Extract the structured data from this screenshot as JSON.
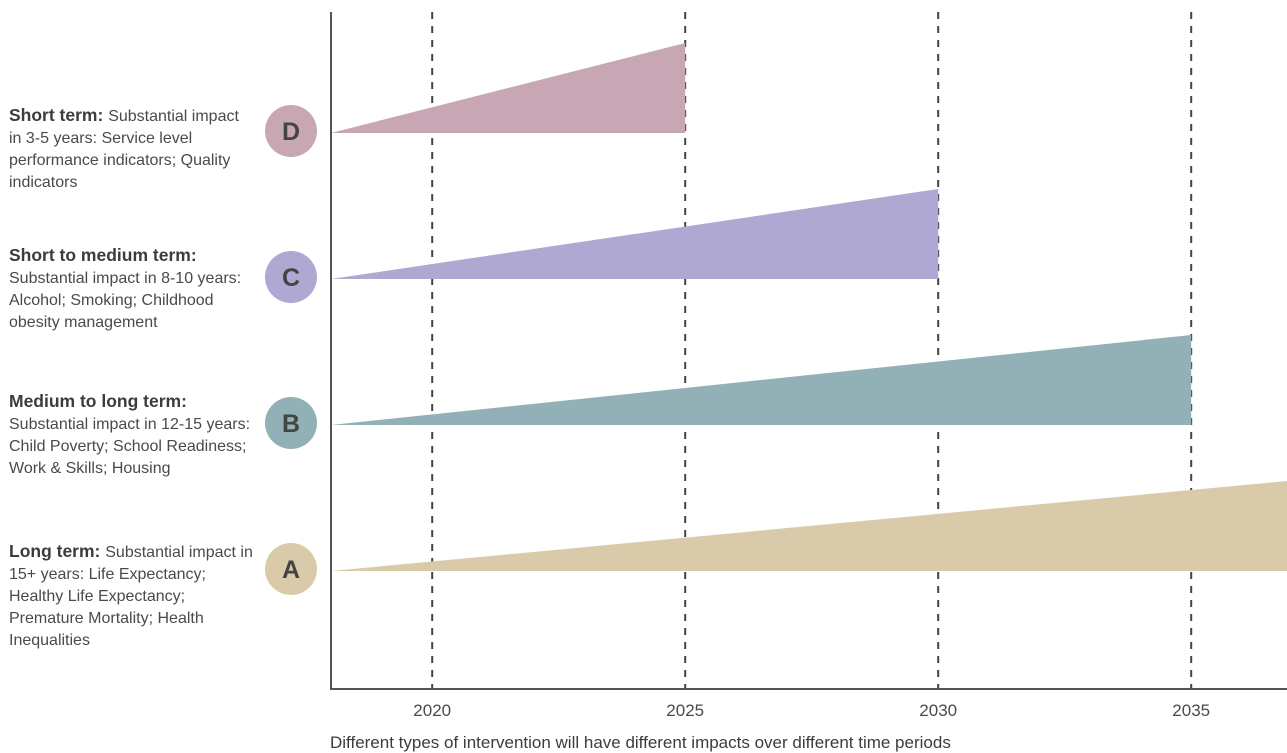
{
  "chart_data": {
    "type": "area",
    "caption": "Different types of intervention will have different impacts over different time periods",
    "x_ticks": [
      2020,
      2025,
      2030,
      2035
    ],
    "xlim": [
      2018,
      2037
    ],
    "gridlines": "vertical dashed at each tick",
    "series": [
      {
        "name": "D",
        "x": [
          2018,
          2025
        ],
        "impact": [
          0,
          1
        ],
        "color": "#c8a7b5",
        "heading": "Short term:",
        "description": "Substantial impact in 3-5 years: Service level performance indicators; Quality indicators"
      },
      {
        "name": "C",
        "x": [
          2018,
          2030
        ],
        "impact": [
          0,
          1
        ],
        "color": "#aea8d3",
        "heading": "Short to medium term:",
        "description": "Substantial impact in 8-10 years: Alcohol; Smoking; Childhood obesity management"
      },
      {
        "name": "B",
        "x": [
          2018,
          2035
        ],
        "impact": [
          0,
          1
        ],
        "color": "#92b1b7",
        "heading": "Medium to long term:",
        "description": "Substantial impact in 12-15 years: Child Poverty; School Readiness; Work & Skills; Housing"
      },
      {
        "name": "A",
        "x": [
          2018,
          2037
        ],
        "impact": [
          0,
          1
        ],
        "color": "#d9cba9",
        "heading": "Long term:",
        "description": "Substantial impact in 15+ years: Life Expectancy; Healthy Life Expectancy; Premature Mortality; Health Inequalities"
      }
    ]
  }
}
